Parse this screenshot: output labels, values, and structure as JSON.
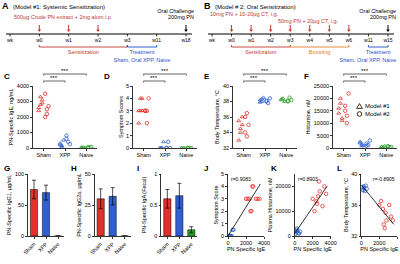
{
  "diagrams": [
    {
      "panel": "A",
      "title": "(Model #1: Systemic Sensitization)",
      "doses": [
        "500µg Crude PN extract + 2mg alum i.p."
      ],
      "weeks": [
        "wk",
        "w0",
        "w1",
        "w2",
        "w3",
        "w11",
        "w18"
      ],
      "phases": [
        "Sensitization",
        "Treatment"
      ],
      "groups": "Sham, Oral XPP, Naive",
      "challenge": [
        "Oral Challenge",
        "200mg PN"
      ]
    },
    {
      "panel": "B",
      "title": "(Model # 2: Oral Sensitization)",
      "doses": [
        "10mg PN + 10-20µg CT, i.g.",
        "50mg PN + 20µg CT, i.g."
      ],
      "weeks": [
        "wk",
        "w0",
        "w1",
        "w2",
        "w3",
        "w4",
        "w5",
        "w6",
        "w11",
        "w15"
      ],
      "phases": [
        "Sensitization",
        "Boosting",
        "Treatment"
      ],
      "groups": "Sham, Oral XPP, Naive",
      "challenge": [
        "Oral Challenge",
        "200mg PN"
      ]
    }
  ],
  "chart_data": [
    {
      "panel": "C",
      "type": "strip",
      "y_title": "PN-Specific IgE, ng/mL",
      "categories": [
        "Sham",
        "XPP",
        "Naive"
      ],
      "colors": [
        "#e2302a",
        "#2f5fd0",
        "#2ca02c"
      ],
      "ylim": [
        0,
        4000
      ],
      "yticks": [
        0,
        1000,
        2000,
        3000,
        4000
      ],
      "series": [
        {
          "marker": "triangle-up-open",
          "values": [
            [
              2400,
              2800,
              3100,
              2600,
              3300,
              2900
            ],
            [
              300,
              150,
              500,
              200,
              100
            ],
            [
              20,
              40,
              10,
              30
            ]
          ]
        },
        {
          "marker": "circle-open",
          "values": [
            [
              2000,
              2500,
              2700,
              3500,
              2200
            ],
            [
              600,
              400,
              250,
              800
            ],
            [
              50,
              30,
              60,
              20
            ]
          ]
        }
      ],
      "annotations": [
        {
          "text": "***",
          "between": [
            "Sham",
            "XPP"
          ]
        },
        {
          "text": "***",
          "between": [
            "Sham",
            "Naive"
          ]
        }
      ]
    },
    {
      "panel": "D",
      "type": "strip",
      "y_title": "Symptom Scores",
      "categories": [
        "Sham",
        "XPP",
        "Naive"
      ],
      "colors": [
        "#e2302a",
        "#2f5fd0",
        "#2ca02c"
      ],
      "ylim": [
        0,
        5
      ],
      "yticks": [
        0,
        1,
        2,
        3,
        4,
        5
      ],
      "series": [
        {
          "marker": "triangle-up-open",
          "values": [
            [
              3,
              4,
              3,
              2,
              3,
              4
            ],
            [
              0,
              0,
              0.5,
              0,
              0
            ],
            [
              0,
              0,
              0,
              0
            ]
          ]
        },
        {
          "marker": "circle-open",
          "values": [
            [
              3,
              2,
              4,
              3,
              3
            ],
            [
              0,
              0.5,
              0,
              0
            ],
            [
              0,
              0,
              0,
              0
            ]
          ]
        }
      ],
      "annotations": [
        {
          "text": "***",
          "between": [
            "Sham",
            "XPP"
          ]
        },
        {
          "text": "***",
          "between": [
            "Sham",
            "Naive"
          ]
        }
      ]
    },
    {
      "panel": "E",
      "type": "strip",
      "y_title": "Body Temperature, °C",
      "categories": [
        "Sham",
        "XPP",
        "Naive"
      ],
      "colors": [
        "#e2302a",
        "#2f5fd0",
        "#2ca02c"
      ],
      "ylim": [
        32,
        40
      ],
      "yticks": [
        32,
        34,
        36,
        38,
        40
      ],
      "series": [
        {
          "marker": "triangle-up-open",
          "values": [
            [
              35.5,
              34,
              36,
              33,
              34.5,
              35
            ],
            [
              38.2,
              38,
              38.5,
              37.9,
              38.3
            ],
            [
              38.2,
              38.4,
              38,
              38.3
            ]
          ]
        },
        {
          "marker": "circle-open",
          "values": [
            [
              36,
              33.5,
              35,
              34,
              36.5
            ],
            [
              38.1,
              37.8,
              38.4,
              38
            ],
            [
              38.1,
              38.5,
              38.2,
              38
            ]
          ]
        }
      ],
      "annotations": [
        {
          "text": "***",
          "between": [
            "Sham",
            "XPP"
          ]
        },
        {
          "text": "***",
          "between": [
            "Sham",
            "Naive"
          ]
        }
      ]
    },
    {
      "panel": "F",
      "type": "strip",
      "y_title": "Histamine, nM",
      "categories": [
        "Sham",
        "XPP",
        "Naive"
      ],
      "colors": [
        "#e2302a",
        "#2f5fd0",
        "#2ca02c"
      ],
      "ylim": [
        0,
        25000
      ],
      "yticks": [
        0,
        5000,
        10000,
        15000,
        20000,
        25000
      ],
      "legend": "right",
      "series": [
        {
          "name": "Model #1",
          "marker": "triangle-up-open",
          "values": [
            [
              14000,
              18000,
              12000,
              16000,
              20000,
              11000
            ],
            [
              2000,
              1500,
              1000,
              2500,
              800
            ],
            [
              500,
              300,
              800,
              400
            ]
          ]
        },
        {
          "name": "Model #2",
          "marker": "circle-open",
          "values": [
            [
              15000,
              13000,
              22000,
              17000,
              10000
            ],
            [
              1800,
              1200,
              3000,
              900
            ],
            [
              600,
              200,
              400,
              700
            ]
          ]
        }
      ],
      "annotations": [
        {
          "text": "***",
          "between": [
            "Sham",
            "XPP"
          ]
        },
        {
          "text": "***",
          "between": [
            "Sham",
            "Naive"
          ]
        }
      ]
    },
    {
      "panel": "G",
      "type": "bar",
      "y_title": "PN-Specific IgG1, µg/mL",
      "categories": [
        "Sham",
        "XPP",
        "Naive"
      ],
      "colors": [
        "#e2302a",
        "#2f5fd0",
        "#2ca02c"
      ],
      "values": [
        75,
        70,
        0
      ],
      "errors": [
        15,
        12,
        0
      ],
      "ylim": [
        0,
        100
      ],
      "yticks": [
        0,
        50,
        100
      ]
    },
    {
      "panel": "H",
      "type": "bar",
      "y_title": "PN-Specific IgG2a, µg/mL",
      "categories": [
        "Sham",
        "XPP",
        "Naive"
      ],
      "colors": [
        "#e2302a",
        "#2f5fd0",
        "#2ca02c"
      ],
      "values": [
        30,
        32,
        0
      ],
      "errors": [
        8,
        7,
        0
      ],
      "ylim": [
        0,
        50
      ],
      "yticks": [
        0,
        25,
        50
      ]
    },
    {
      "panel": "I",
      "type": "bar",
      "y_title": "PN-Specific IgA (Fecal)",
      "categories": [
        "Sham",
        "XPP",
        "Naive"
      ],
      "colors": [
        "#e2302a",
        "#2f5fd0",
        "#2ca02c"
      ],
      "values": [
        0.6,
        0.65,
        0.1
      ],
      "errors": [
        0.15,
        0.2,
        0.05
      ],
      "ylim": [
        0,
        1
      ],
      "yticks": [
        0,
        0.5,
        1
      ]
    },
    {
      "panel": "J",
      "type": "scatter",
      "y_title": "Symptom Score",
      "x_title": "PN Specific IgE",
      "xlim": [
        0,
        4000
      ],
      "xticks": [
        0,
        2000,
        4000
      ],
      "ylim": [
        0,
        5
      ],
      "yticks": [
        0,
        1,
        2,
        3,
        4,
        5
      ],
      "series": [
        {
          "color": "#e2302a",
          "marker": "circle-open",
          "x": [
            2400,
            2800,
            3100,
            2600,
            3300,
            2000,
            2500,
            2700,
            3500,
            2200
          ],
          "y": [
            3,
            4,
            3,
            2,
            3,
            3,
            2,
            4,
            3,
            3
          ]
        },
        {
          "color": "#2f5fd0",
          "marker": "circle-open",
          "x": [
            300,
            150,
            500,
            200,
            100,
            600,
            400,
            250
          ],
          "y": [
            0,
            0,
            0.5,
            0,
            0,
            0.5,
            0,
            0
          ]
        }
      ],
      "fit": {
        "x": [
          0,
          3600
        ],
        "y": [
          0,
          4.2
        ]
      },
      "annotation": "r=0.9083"
    },
    {
      "panel": "K",
      "type": "scatter",
      "y_title": "Plasma Histamine, nM",
      "x_title": "PN Specific IgE",
      "xlim": [
        0,
        4000
      ],
      "xticks": [
        0,
        2000,
        4000
      ],
      "ylim": [
        0,
        25000
      ],
      "yticks": [
        0,
        10000,
        20000
      ],
      "series": [
        {
          "color": "#e2302a",
          "marker": "circle-open",
          "x": [
            2400,
            2800,
            3100,
            2600,
            3300,
            2000,
            2500,
            2700,
            3500,
            2200
          ],
          "y": [
            14000,
            18000,
            12000,
            16000,
            20000,
            15000,
            13000,
            22000,
            17000,
            10000
          ]
        },
        {
          "color": "#2f5fd0",
          "marker": "circle-open",
          "x": [
            300,
            150,
            500,
            200,
            100,
            600,
            400,
            250
          ],
          "y": [
            2000,
            1500,
            1000,
            2500,
            800,
            1800,
            1200,
            3000
          ]
        }
      ],
      "fit": {
        "x": [
          0,
          3600
        ],
        "y": [
          1000,
          20000
        ]
      },
      "annotation": "r=0.8903"
    },
    {
      "panel": "L",
      "type": "scatter",
      "y_title": "Body Temperature, °C",
      "x_title": "PN Specific IgE",
      "xlim": [
        0,
        4000
      ],
      "xticks": [
        0,
        2000,
        4000
      ],
      "ylim": [
        32,
        40
      ],
      "yticks": [
        32,
        36,
        40
      ],
      "series": [
        {
          "color": "#e2302a",
          "marker": "circle-open",
          "x": [
            2400,
            2800,
            3100,
            2600,
            3300,
            2000,
            2500,
            2700,
            3500,
            2200
          ],
          "y": [
            35.5,
            34,
            36,
            33,
            34.5,
            36,
            33.5,
            35,
            34,
            36.5
          ]
        },
        {
          "color": "#2f5fd0",
          "marker": "circle-open",
          "x": [
            300,
            150,
            500,
            200,
            100,
            600,
            400,
            250
          ],
          "y": [
            38.2,
            38,
            38.5,
            37.9,
            38.3,
            38.1,
            37.8,
            38.4
          ]
        }
      ],
      "fit": {
        "x": [
          0,
          3600
        ],
        "y": [
          38.6,
          33.5
        ]
      },
      "annotation": "r=-0.8905"
    }
  ]
}
